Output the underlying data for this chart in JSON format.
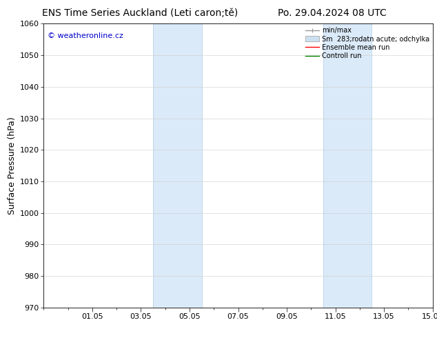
{
  "title_left": "ENS Time Series Auckland (Leti caron;tě)",
  "title_right": "Po. 29.04.2024 08 UTC",
  "ylabel": "Surface Pressure (hPa)",
  "ylim": [
    970,
    1060
  ],
  "yticks": [
    970,
    980,
    990,
    1000,
    1010,
    1020,
    1030,
    1040,
    1050,
    1060
  ],
  "xtick_labels": [
    "01.05",
    "03.05",
    "05.05",
    "07.05",
    "09.05",
    "11.05",
    "13.05",
    "15.05"
  ],
  "xtick_positions": [
    2,
    4,
    6,
    8,
    10,
    12,
    14,
    16
  ],
  "xlim": [
    0,
    16
  ],
  "shaded_bands": [
    {
      "x_start": 4.5,
      "x_end": 6.5
    },
    {
      "x_start": 11.5,
      "x_end": 13.5
    }
  ],
  "band_color": "#dbeaf8",
  "band_edge_color": "#b8d4ea",
  "watermark_text": "© weatheronline.cz",
  "watermark_color": "#0000cc",
  "legend_label_minmax": "min/max",
  "legend_label_spread": "Sm  283;rodatn acute; odchylka",
  "legend_label_ensemble": "Ensemble mean run",
  "legend_label_control": "Controll run",
  "legend_color_minmax": "#999999",
  "legend_color_spread": "#cce0f0",
  "legend_color_ensemble": "#ff0000",
  "legend_color_control": "#008800",
  "background_color": "#ffffff",
  "title_fontsize": 10,
  "tick_fontsize": 8,
  "ylabel_fontsize": 9,
  "watermark_fontsize": 8,
  "legend_fontsize": 7
}
